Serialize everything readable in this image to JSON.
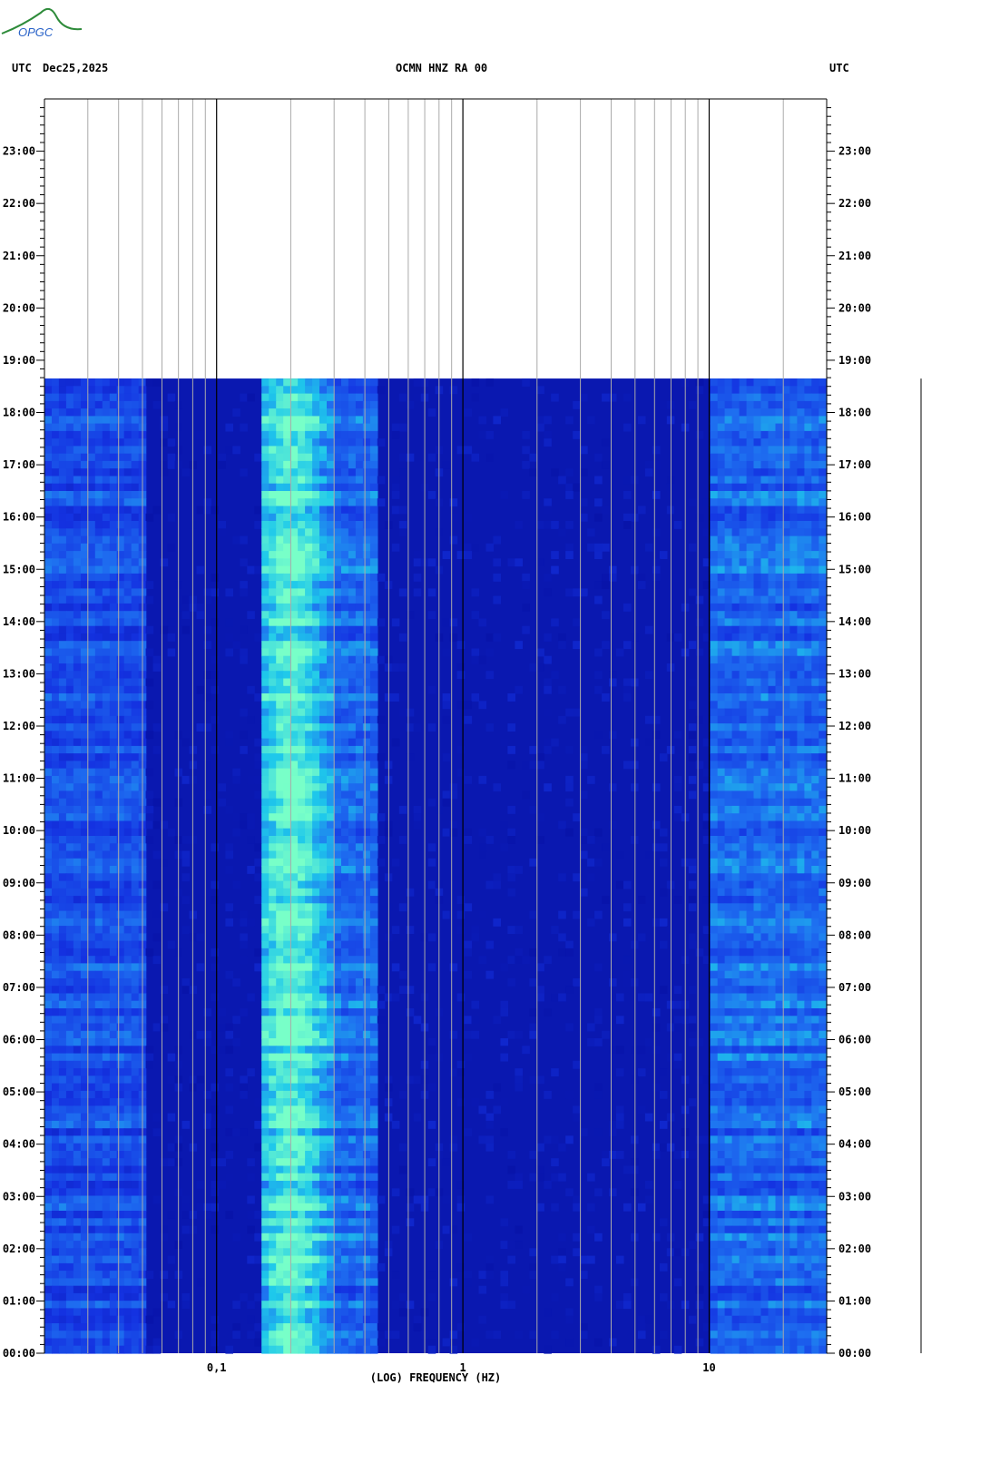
{
  "header": {
    "left_utc": "UTC",
    "date": "Dec25,2025",
    "title": "OCMN HNZ RA 00",
    "right_utc": "UTC"
  },
  "logo": {
    "text": "OPGC"
  },
  "chart_data": {
    "type": "heatmap",
    "title": "OCMN HNZ RA 00",
    "date": "Dec25,2025",
    "xlabel": "(LOG) FREQUENCY (HZ)",
    "x_scale": "log",
    "xlim": [
      0.02,
      30
    ],
    "x_tick_labels": [
      {
        "value": 0.1,
        "label": "0,1"
      },
      {
        "value": 1,
        "label": "1"
      },
      {
        "value": 10,
        "label": "10"
      }
    ],
    "x_minor_gridlines": [
      0.03,
      0.04,
      0.05,
      0.06,
      0.07,
      0.08,
      0.09,
      0.2,
      0.3,
      0.4,
      0.5,
      0.6,
      0.7,
      0.8,
      0.9,
      2,
      3,
      4,
      5,
      6,
      7,
      8,
      9,
      20
    ],
    "y_axis_label_left": "UTC",
    "y_axis_label_right": "UTC",
    "y_range_hours": [
      0,
      24
    ],
    "y_tick_labels": [
      "00:00",
      "01:00",
      "02:00",
      "03:00",
      "04:00",
      "05:00",
      "06:00",
      "07:00",
      "08:00",
      "09:00",
      "10:00",
      "11:00",
      "12:00",
      "13:00",
      "14:00",
      "15:00",
      "16:00",
      "17:00",
      "18:00",
      "19:00",
      "20:00",
      "21:00",
      "22:00",
      "23:00"
    ],
    "data_end_hour": 18.65,
    "colors": {
      "background_quiet": "#0a18b0",
      "low_energy": "#1d35e0",
      "microseism_peak": "#20e8ea",
      "high_freq_noise": "#2a8cf0",
      "gridline": "#aaaaaa",
      "major_gridline": "#000000"
    },
    "energy_bands": [
      {
        "freq_range_hz": [
          0.02,
          0.05
        ],
        "level": 0.45,
        "description": "long-period band"
      },
      {
        "freq_range_hz": [
          0.15,
          0.3
        ],
        "level": 0.9,
        "description": "microseism peak"
      },
      {
        "freq_range_hz": [
          0.3,
          0.45
        ],
        "level": 0.55
      },
      {
        "freq_range_hz": [
          0.45,
          10
        ],
        "level": 0.1
      },
      {
        "freq_range_hz": [
          10,
          30
        ],
        "level": 0.55
      }
    ]
  }
}
